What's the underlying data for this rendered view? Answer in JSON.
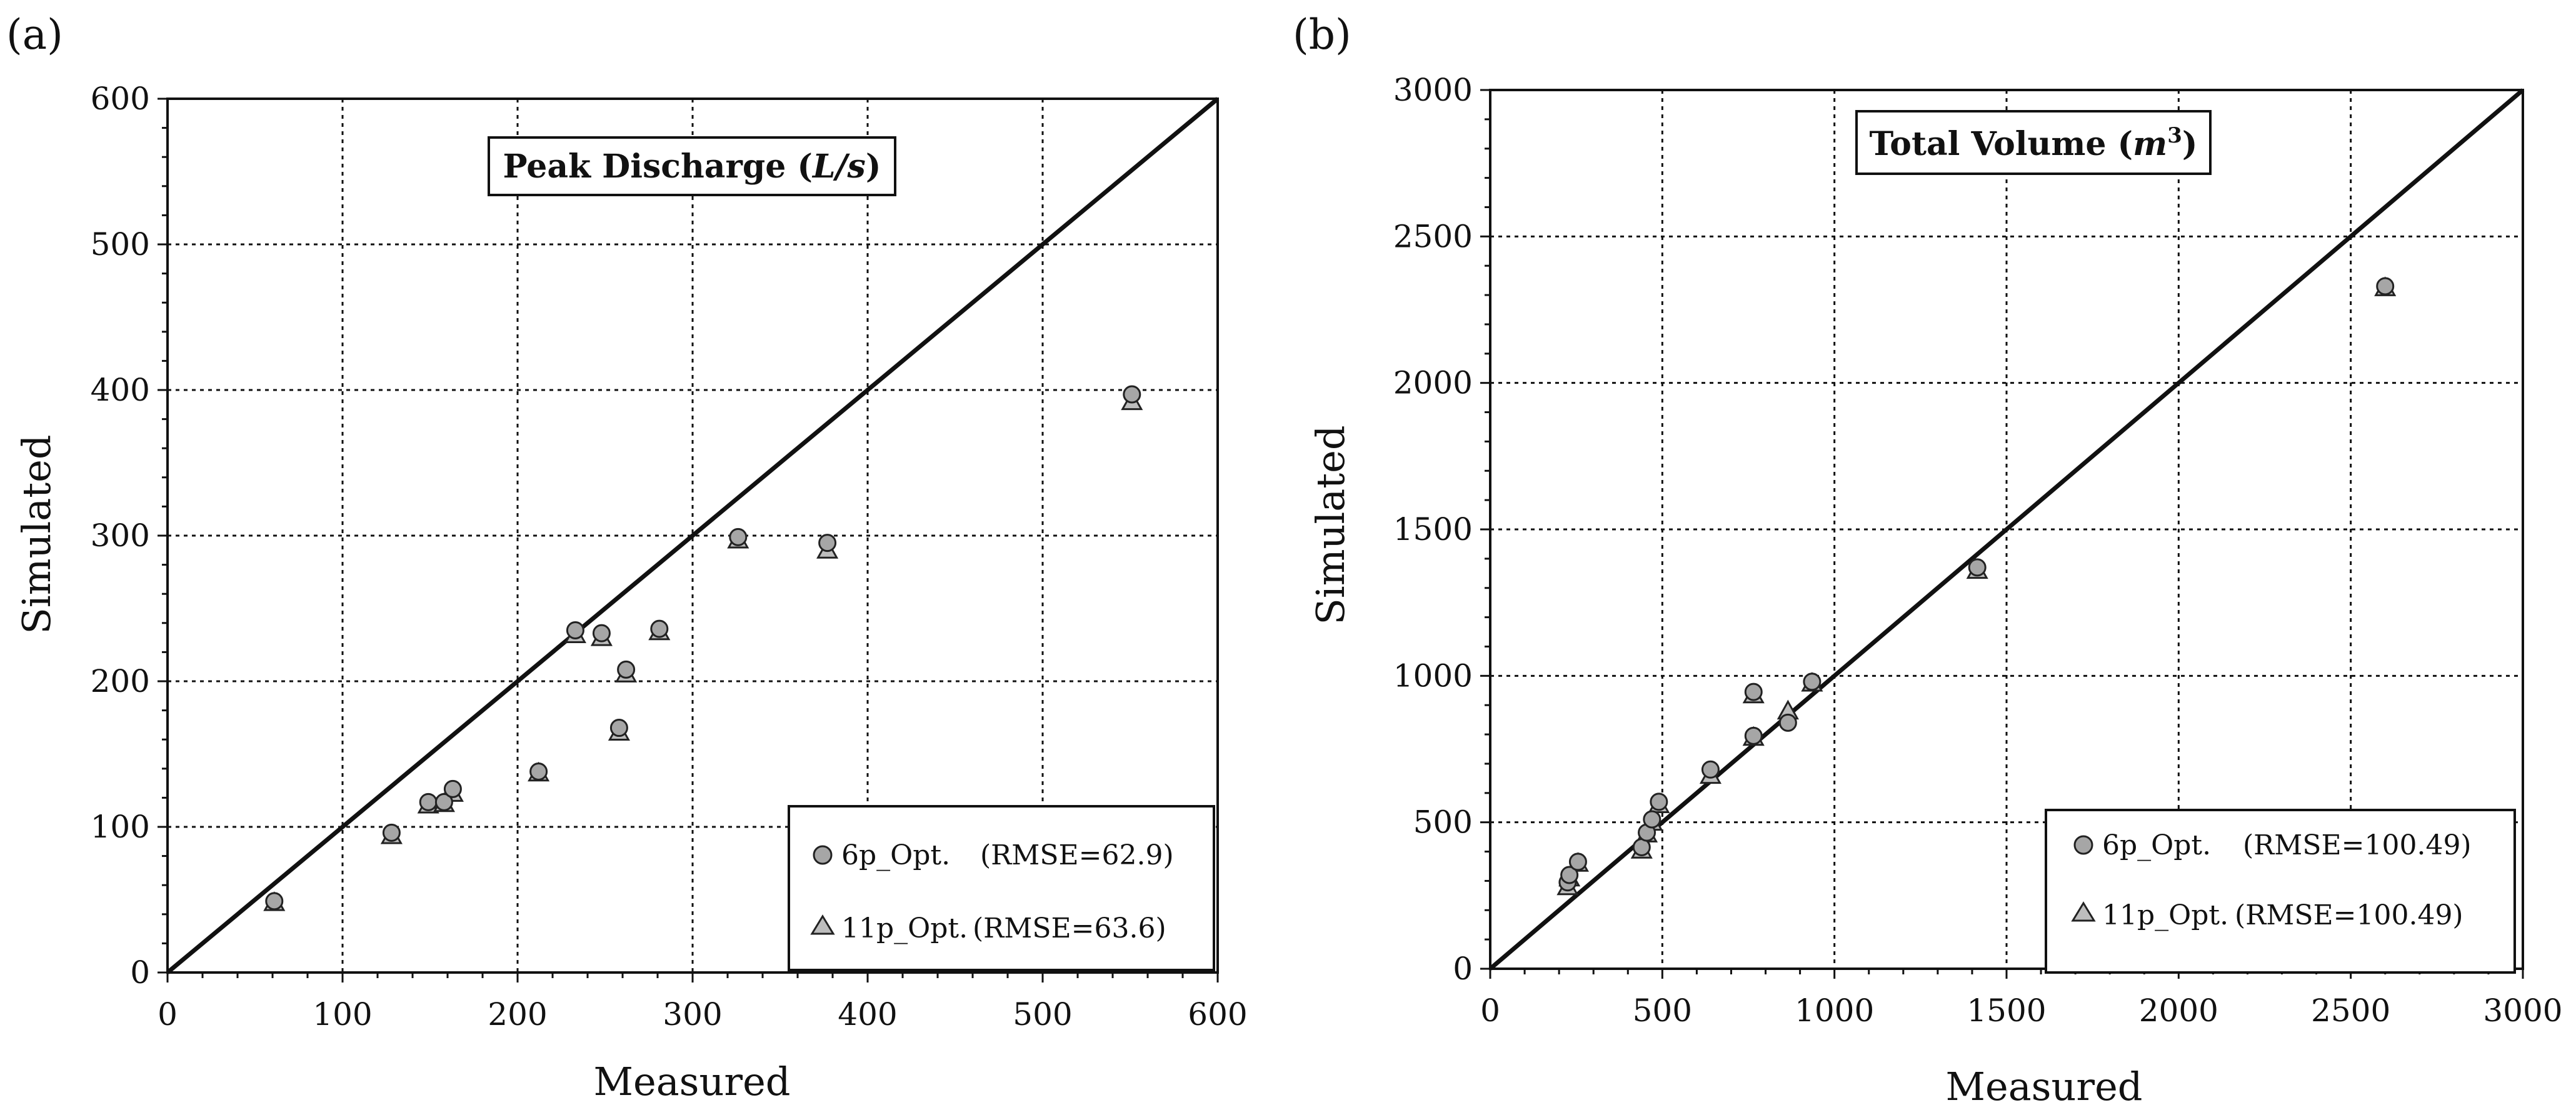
{
  "chart_data": [
    {
      "type": "scatter",
      "panel": "(a)",
      "title": "Peak Discharge (L/s)",
      "title_main": "Peak Discharge (",
      "title_unit": "L/s",
      "title_close": ")",
      "xlabel": "Measured",
      "ylabel": "Simulated",
      "xlim": [
        0,
        600
      ],
      "ylim": [
        0,
        600
      ],
      "xticks": [
        0,
        100,
        200,
        300,
        400,
        500,
        600
      ],
      "yticks": [
        0,
        100,
        200,
        300,
        400,
        500,
        600
      ],
      "grid": true,
      "reference_line": "1:1",
      "legend_position": "bottom-right",
      "series": [
        {
          "name": "6p_Opt.",
          "rmse": "(RMSE=62.9)",
          "marker": "circle",
          "color": "#a6a6a6",
          "x": [
            61,
            128,
            149,
            158,
            163,
            212,
            233,
            248,
            258,
            262,
            281,
            326,
            377,
            551
          ],
          "y": [
            49,
            96,
            117,
            117,
            126,
            138,
            235,
            233,
            168,
            208,
            236,
            299,
            295,
            397
          ]
        },
        {
          "name": "11p_Opt.",
          "rmse": "(RMSE=63.6)",
          "marker": "triangle",
          "color": "#bdbdbd",
          "x": [
            61,
            128,
            149,
            158,
            163,
            212,
            233,
            248,
            258,
            262,
            281,
            326,
            377,
            551
          ],
          "y": [
            48,
            94,
            115,
            116,
            123,
            137,
            232,
            230,
            165,
            205,
            234,
            297,
            290,
            392
          ]
        }
      ]
    },
    {
      "type": "scatter",
      "panel": "(b)",
      "title": "Total Volume (m3)",
      "title_main": "Total Volume (",
      "title_unit": "m",
      "title_sup": "3",
      "title_close": ")",
      "xlabel": "Measured",
      "ylabel": "Simulated",
      "xlim": [
        0,
        3000
      ],
      "ylim": [
        0,
        3000
      ],
      "xticks": [
        0,
        500,
        1000,
        1500,
        2000,
        2500,
        3000
      ],
      "yticks": [
        0,
        500,
        1000,
        1500,
        2000,
        2500,
        3000
      ],
      "grid": true,
      "reference_line": "1:1",
      "legend_position": "bottom-right",
      "series": [
        {
          "name": "6p_Opt.",
          "rmse": "(RMSE=100.49)",
          "marker": "circle",
          "color": "#a6a6a6",
          "x": [
            225,
            230,
            255,
            440,
            455,
            470,
            490,
            640,
            765,
            765,
            865,
            935,
            1415,
            2600
          ],
          "y": [
            295,
            320,
            365,
            415,
            465,
            510,
            570,
            680,
            795,
            945,
            840,
            980,
            1370,
            2330
          ]
        },
        {
          "name": "11p_Opt.",
          "rmse": "(RMSE=100.49)",
          "marker": "triangle",
          "color": "#bdbdbd",
          "x": [
            225,
            230,
            255,
            440,
            455,
            470,
            490,
            640,
            765,
            765,
            865,
            935,
            1415,
            2600
          ],
          "y": [
            280,
            310,
            360,
            405,
            460,
            500,
            560,
            660,
            790,
            935,
            880,
            975,
            1360,
            2325
          ]
        }
      ]
    }
  ]
}
